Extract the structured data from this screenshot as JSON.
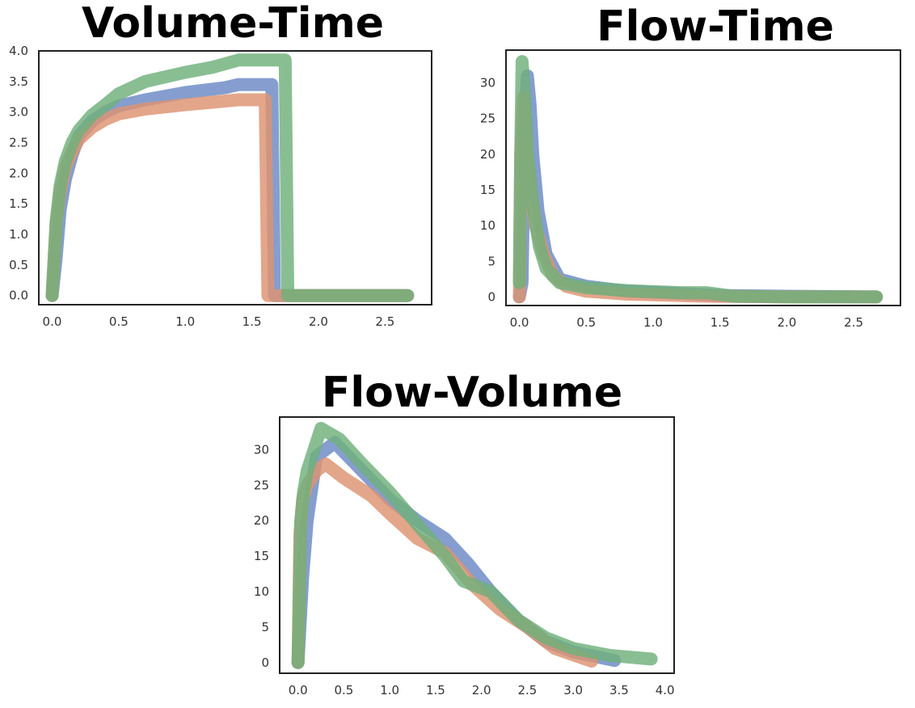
{
  "colors": {
    "blue": "#6a89c4",
    "orange": "#dd9270",
    "green": "#6fb07a"
  },
  "chart_data": [
    {
      "type": "line",
      "title": "Volume-Time",
      "xlabel": "",
      "ylabel": "",
      "xlim": [
        -0.1,
        2.85
      ],
      "ylim": [
        -0.15,
        4.0
      ],
      "xticks": [
        "0.0",
        "0.5",
        "1.0",
        "1.5",
        "2.0",
        "2.5"
      ],
      "yticks": [
        "0.0",
        "0.5",
        "1.0",
        "1.5",
        "2.0",
        "2.5",
        "3.0",
        "3.5",
        "4.0"
      ],
      "grid": false,
      "series": [
        {
          "color": "#6a89c4",
          "x": [
            0.0,
            0.03,
            0.06,
            0.1,
            0.15,
            0.2,
            0.3,
            0.4,
            0.5,
            0.7,
            1.0,
            1.3,
            1.4,
            1.65,
            1.67,
            2.67
          ],
          "y": [
            0.0,
            0.6,
            1.4,
            1.9,
            2.3,
            2.6,
            2.85,
            3.0,
            3.1,
            3.2,
            3.32,
            3.4,
            3.45,
            3.45,
            0.0,
            0.0
          ]
        },
        {
          "color": "#dd9270",
          "x": [
            0.0,
            0.03,
            0.06,
            0.1,
            0.15,
            0.2,
            0.3,
            0.4,
            0.5,
            0.7,
            1.0,
            1.3,
            1.4,
            1.6,
            1.62,
            2.67
          ],
          "y": [
            0.0,
            1.2,
            1.7,
            2.1,
            2.35,
            2.55,
            2.75,
            2.88,
            2.97,
            3.05,
            3.12,
            3.18,
            3.2,
            3.2,
            0.0,
            0.0
          ]
        },
        {
          "color": "#6fb07a",
          "x": [
            0.0,
            0.03,
            0.06,
            0.1,
            0.15,
            0.2,
            0.3,
            0.4,
            0.5,
            0.7,
            1.0,
            1.2,
            1.4,
            1.75,
            1.77,
            2.67
          ],
          "y": [
            0.0,
            1.2,
            1.8,
            2.2,
            2.5,
            2.7,
            2.95,
            3.12,
            3.3,
            3.5,
            3.65,
            3.73,
            3.85,
            3.85,
            0.0,
            0.0
          ]
        }
      ]
    },
    {
      "type": "line",
      "title": "Flow-Time",
      "xlabel": "",
      "ylabel": "",
      "xlim": [
        -0.1,
        2.85
      ],
      "ylim": [
        -1.2,
        34.6
      ],
      "xticks": [
        "0.0",
        "0.5",
        "1.0",
        "1.5",
        "2.0",
        "2.5"
      ],
      "yticks": [
        "0",
        "5",
        "10",
        "15",
        "20",
        "25",
        "30"
      ],
      "grid": false,
      "series": [
        {
          "color": "#6a89c4",
          "x": [
            0.0,
            0.02,
            0.04,
            0.06,
            0.08,
            0.1,
            0.14,
            0.2,
            0.3,
            0.5,
            0.8,
            1.2,
            1.5,
            2.0,
            2.67
          ],
          "y": [
            0,
            2,
            25,
            31,
            27,
            20,
            12,
            6,
            2.5,
            1.5,
            0.8,
            0.5,
            0.2,
            0.1,
            0
          ]
        },
        {
          "color": "#dd9270",
          "x": [
            0.0,
            0.01,
            0.03,
            0.05,
            0.08,
            0.12,
            0.18,
            0.25,
            0.35,
            0.5,
            0.8,
            1.2,
            1.4,
            2.0,
            2.67
          ],
          "y": [
            0,
            20,
            28,
            22,
            15,
            10,
            6,
            3,
            1.5,
            0.8,
            0.4,
            0.2,
            0.1,
            0.0,
            0
          ]
        },
        {
          "color": "#6fb07a",
          "x": [
            0.0,
            0.01,
            0.02,
            0.04,
            0.06,
            0.1,
            0.15,
            0.2,
            0.3,
            0.5,
            0.8,
            1.2,
            1.4,
            1.6,
            2.0,
            2.67
          ],
          "y": [
            2,
            20,
            33,
            28,
            20,
            13,
            7,
            4,
            2,
            1.3,
            0.9,
            0.6,
            0.6,
            0.1,
            0.0,
            0
          ]
        }
      ]
    },
    {
      "type": "line",
      "title": "Flow-Volume",
      "xlabel": "",
      "ylabel": "",
      "xlim": [
        -0.2,
        4.1
      ],
      "ylim": [
        -1.5,
        34.6
      ],
      "xticks": [
        "0.0",
        "0.5",
        "1.0",
        "1.5",
        "2.0",
        "2.5",
        "3.0",
        "3.5",
        "4.0"
      ],
      "yticks": [
        "0",
        "5",
        "10",
        "15",
        "20",
        "25",
        "30"
      ],
      "grid": false,
      "series": [
        {
          "color": "#6a89c4",
          "x": [
            0.0,
            0.05,
            0.1,
            0.2,
            0.4,
            0.7,
            1.0,
            1.3,
            1.6,
            1.85,
            2.1,
            2.4,
            2.7,
            3.0,
            3.45
          ],
          "y": [
            0,
            12,
            20,
            29,
            31,
            27,
            23,
            20,
            17.5,
            14,
            10,
            6,
            3,
            1.5,
            0.3
          ]
        },
        {
          "color": "#dd9270",
          "x": [
            0.0,
            0.02,
            0.05,
            0.1,
            0.2,
            0.3,
            0.5,
            0.8,
            1.0,
            1.3,
            1.6,
            1.9,
            2.2,
            2.5,
            2.8,
            3.2
          ],
          "y": [
            0,
            18,
            23,
            25,
            27,
            28,
            26,
            23.5,
            21,
            17.5,
            15.5,
            11,
            7.5,
            5,
            2,
            0.2
          ]
        },
        {
          "color": "#6fb07a",
          "x": [
            0.0,
            0.03,
            0.06,
            0.1,
            0.2,
            0.25,
            0.45,
            0.7,
            1.0,
            1.3,
            1.6,
            1.8,
            2.1,
            2.4,
            2.7,
            3.0,
            3.4,
            3.85
          ],
          "y": [
            0,
            20,
            24,
            27,
            31,
            33,
            31.5,
            28,
            24,
            19.5,
            15,
            11.5,
            10,
            6,
            3.5,
            2,
            1,
            0.5
          ]
        }
      ]
    }
  ]
}
